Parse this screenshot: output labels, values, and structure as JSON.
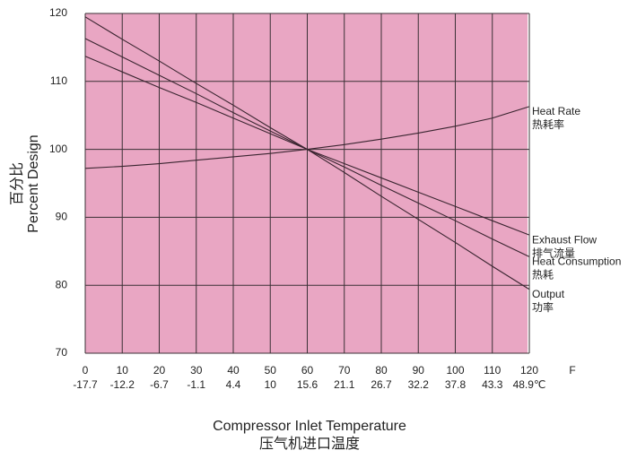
{
  "chart_data": {
    "type": "line",
    "ylabel": "Percent Design",
    "ylabel_cn": "百分比",
    "xlabel": "Compressor Inlet Temperature",
    "xlabel_cn": "压气机进口温度",
    "x_unit": "F",
    "x": [
      0,
      10,
      20,
      30,
      40,
      50,
      60,
      70,
      80,
      90,
      100,
      110,
      120
    ],
    "xlim": [
      0,
      120
    ],
    "xticks": [
      0,
      10,
      20,
      30,
      40,
      50,
      60,
      70,
      80,
      90,
      100,
      110,
      120
    ],
    "x2ticks": [
      {
        "value": 0,
        "label": "-17.7"
      },
      {
        "value": 10,
        "label": "-12.2"
      },
      {
        "value": 20,
        "label": "-6.7"
      },
      {
        "value": 30,
        "label": "-1.1"
      },
      {
        "value": 40,
        "label": "4.4"
      },
      {
        "value": 50,
        "label": "10"
      },
      {
        "value": 60,
        "label": "15.6"
      },
      {
        "value": 70,
        "label": "21.1"
      },
      {
        "value": 80,
        "label": "26.7"
      },
      {
        "value": 90,
        "label": "32.2"
      },
      {
        "value": 100,
        "label": "37.8"
      },
      {
        "value": 110,
        "label": "43.3"
      },
      {
        "value": 120,
        "label": "48.9℃"
      }
    ],
    "ylim": [
      70,
      120
    ],
    "yticks": [
      70,
      80,
      90,
      100,
      110,
      120
    ],
    "grid": true,
    "background": "#e9a6c3",
    "series": [
      {
        "name": "Heat Rate",
        "name_cn": "热耗率",
        "color": "#3a2530",
        "values": [
          97.2,
          97.5,
          97.9,
          98.4,
          98.9,
          99.4,
          100,
          100.7,
          101.5,
          102.4,
          103.4,
          104.6,
          106.3
        ]
      },
      {
        "name": "Exhaust Flow",
        "name_cn": "排气流量",
        "color": "#3a2530",
        "values": [
          113.7,
          111.4,
          109.1,
          106.9,
          104.6,
          102.3,
          100,
          97.9,
          95.8,
          93.7,
          91.6,
          89.5,
          87.4
        ]
      },
      {
        "name": "Heat Consumption",
        "name_cn": "热耗",
        "color": "#3a2530",
        "values": [
          116.3,
          113.6,
          110.9,
          108.2,
          105.4,
          102.7,
          100,
          97.4,
          94.7,
          92.1,
          89.5,
          86.8,
          84.2
        ]
      },
      {
        "name": "Output",
        "name_cn": "功率",
        "color": "#3a2530",
        "values": [
          119.5,
          116.2,
          113,
          109.7,
          106.5,
          103.2,
          100,
          96.6,
          93.1,
          89.7,
          86.3,
          82.8,
          79.4
        ]
      }
    ]
  }
}
